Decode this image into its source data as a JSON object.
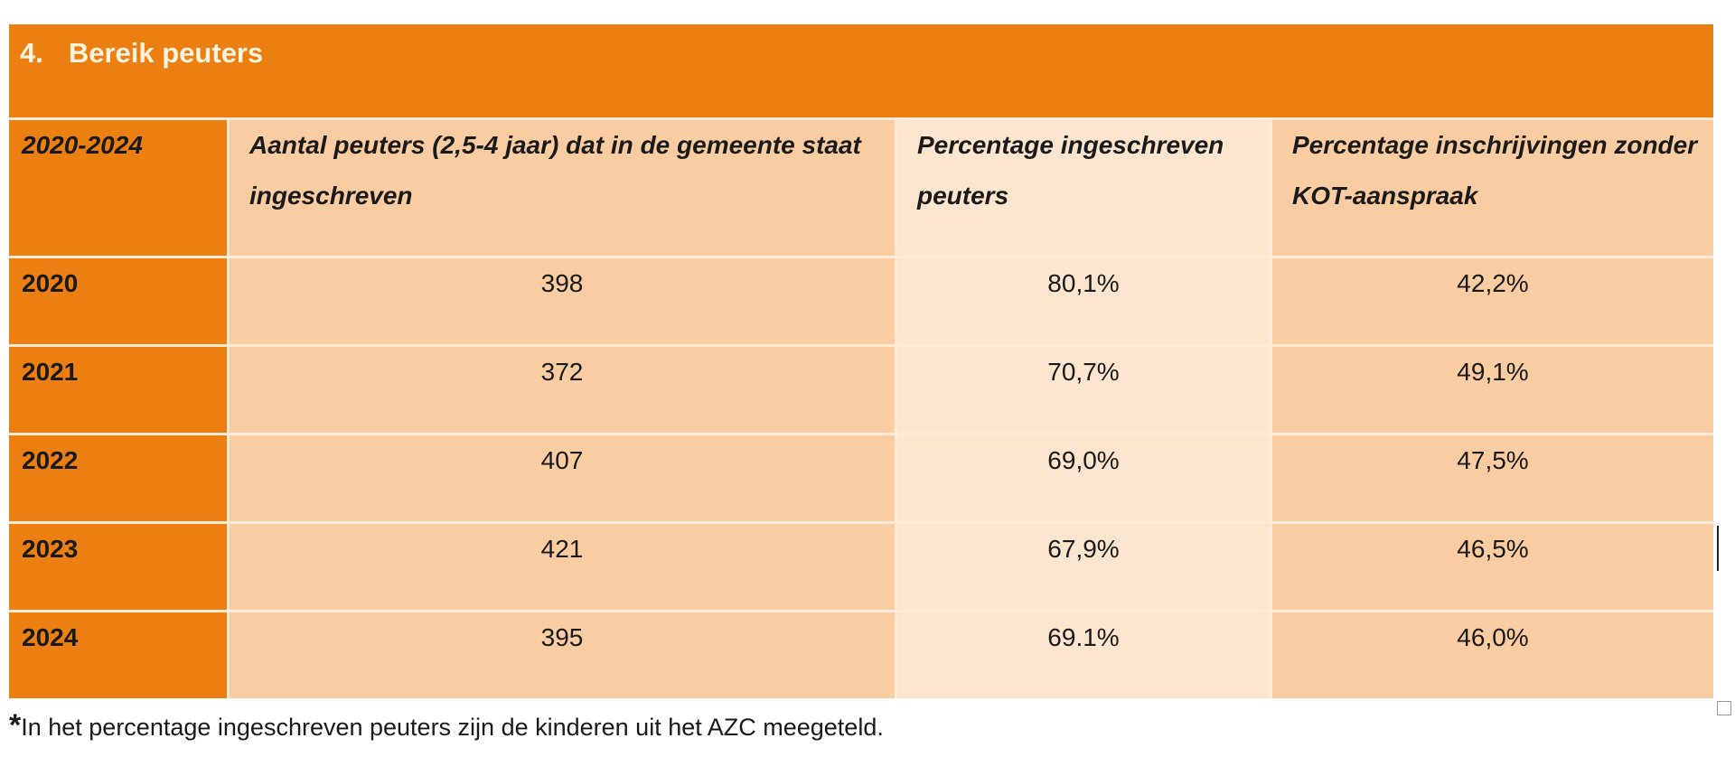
{
  "title": {
    "number": "4.",
    "text": "Bereik peuters"
  },
  "header": [
    "2020-2024",
    "Aantal peuters (2,5-4 jaar) dat in de gemeente staat ingeschreven",
    "Percentage ingeschreven peuters",
    "Percentage inschrijvingen zonder KOT-aanspraak"
  ],
  "rows": [
    {
      "year": "2020",
      "count": "398",
      "pct": "80,1%",
      "pct_kot": "42,2%"
    },
    {
      "year": "2021",
      "count": "372",
      "pct": "70,7%",
      "pct_kot": "49,1%"
    },
    {
      "year": "2022",
      "count": "407",
      "pct": "69,0%",
      "pct_kot": "47,5%"
    },
    {
      "year": "2023",
      "count": "421",
      "pct": "67,9%",
      "pct_kot": "46,5%"
    },
    {
      "year": "2024",
      "count": "395",
      "pct": "69.1%",
      "pct_kot": "46,0%"
    }
  ],
  "footnote": {
    "marker": "*",
    "text": "In het percentage ingeschreven peuters zijn de kinderen uit het AZC meegeteld."
  },
  "colors": {
    "orange": "#EC7F12",
    "peach": "#F9CCA2",
    "light_peach": "#FCE5CE"
  }
}
